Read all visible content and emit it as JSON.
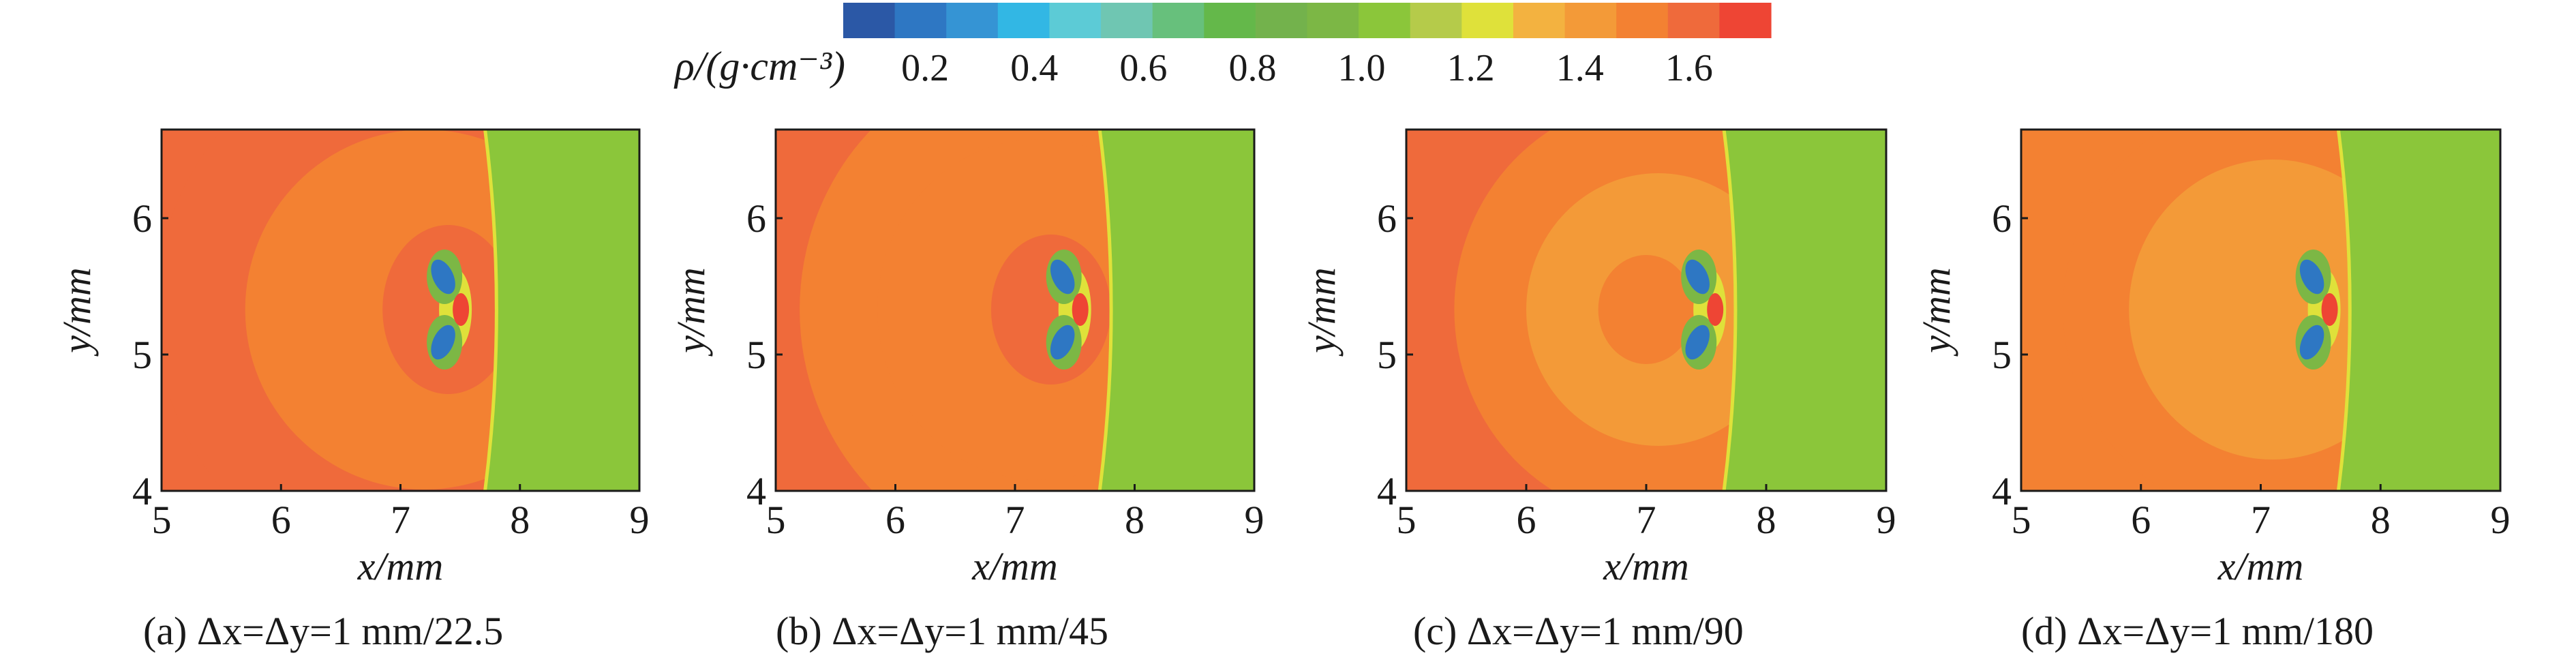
{
  "chart_data": {
    "type": "heatmap",
    "colorbar": {
      "label": "ρ/(g·cm⁻³)",
      "range": [
        0.05,
        1.75
      ],
      "ticks": [
        0.2,
        0.4,
        0.6,
        0.8,
        1.0,
        1.2,
        1.4,
        1.6
      ],
      "tick_labels": [
        "0.2",
        "0.4",
        "0.6",
        "0.8",
        "1.0",
        "1.2",
        "1.4",
        "1.6"
      ],
      "colors": [
        "#2b58a6",
        "#2e77c3",
        "#3594d4",
        "#32b7e4",
        "#5ccbd6",
        "#6fc6b2",
        "#67c07c",
        "#64b84a",
        "#73b24c",
        "#7cb745",
        "#8bc63a",
        "#b5cb4a",
        "#dfe13a",
        "#f3b240",
        "#f39a38",
        "#f38132",
        "#ef6a3b",
        "#ee4534"
      ]
    },
    "panels": [
      {
        "id": "a",
        "caption": "(a) Δx=Δy=1 mm/22.5",
        "xlabel": "x/mm",
        "ylabel": "y/mm",
        "xlim": [
          5,
          9
        ],
        "ylim": [
          4,
          6.65
        ],
        "xticks": [
          "5",
          "6",
          "7",
          "8",
          "9"
        ],
        "yticks": [
          "4",
          "5",
          "6"
        ],
        "shock_x": 7.78,
        "background_left": 1.64,
        "background_right": 1.08,
        "contours": [
          {
            "cx": 7.2,
            "cy": 5.33,
            "rx": 2.25,
            "ry": 2.0,
            "density": 1.58
          },
          {
            "cx": 7.2,
            "cy": 5.33,
            "rx": 1.5,
            "ry": 1.32,
            "density": 1.48
          },
          {
            "cx": 7.4,
            "cy": 5.33,
            "rx": 0.55,
            "ry": 0.62,
            "density": 1.58
          }
        ],
        "jet": {
          "x": 7.38,
          "y": 5.33,
          "density": 0.2
        }
      },
      {
        "id": "b",
        "caption": "(b) Δx=Δy=1 mm/45",
        "xlabel": "x/mm",
        "ylabel": "y/mm",
        "xlim": [
          5,
          9
        ],
        "ylim": [
          4,
          6.65
        ],
        "xticks": [
          "5",
          "6",
          "7",
          "8",
          "9"
        ],
        "yticks": [
          "4",
          "5",
          "6"
        ],
        "shock_x": 7.78,
        "background_left": 1.6,
        "background_right": 1.08,
        "contours": [
          {
            "cx": 7.2,
            "cy": 5.33,
            "rx": 2.0,
            "ry": 1.85,
            "density": 1.55
          },
          {
            "cx": 7.2,
            "cy": 5.33,
            "rx": 1.35,
            "ry": 1.25,
            "density": 1.47
          },
          {
            "cx": 7.3,
            "cy": 5.33,
            "rx": 0.5,
            "ry": 0.55,
            "density": 1.57
          }
        ],
        "jet": {
          "x": 7.42,
          "y": 5.33,
          "density": 0.2
        }
      },
      {
        "id": "c",
        "caption": "(c) Δx=Δy=1 mm/90",
        "xlabel": "x/mm",
        "ylabel": "y/mm",
        "xlim": [
          5,
          9
        ],
        "ylim": [
          4,
          6.65
        ],
        "xticks": [
          "5",
          "6",
          "7",
          "8",
          "9"
        ],
        "yticks": [
          "4",
          "5",
          "6"
        ],
        "shock_x": 7.72,
        "background_left": 1.57,
        "background_right": 1.08,
        "contours": [
          {
            "cx": 7.1,
            "cy": 5.33,
            "rx": 1.7,
            "ry": 1.55,
            "density": 1.5
          },
          {
            "cx": 7.1,
            "cy": 5.33,
            "rx": 1.1,
            "ry": 1.0,
            "density": 1.45
          },
          {
            "cx": 7.0,
            "cy": 5.33,
            "rx": 0.4,
            "ry": 0.4,
            "density": 1.5
          }
        ],
        "jet": {
          "x": 7.45,
          "y": 5.33,
          "density": 0.2
        }
      },
      {
        "id": "d",
        "caption": "(d) Δx=Δy=1 mm/180",
        "xlabel": "x/mm",
        "ylabel": "y/mm",
        "xlim": [
          5,
          9
        ],
        "ylim": [
          4,
          6.65
        ],
        "xticks": [
          "5",
          "6",
          "7",
          "8",
          "9"
        ],
        "yticks": [
          "4",
          "5",
          "6"
        ],
        "shock_x": 7.72,
        "background_left": 1.55,
        "background_right": 1.08,
        "strip": {
          "x0": 5.0,
          "x1": 5.45,
          "density": 1.5
        },
        "contours": [
          {
            "cx": 7.1,
            "cy": 5.33,
            "rx": 1.75,
            "ry": 1.55,
            "density": 1.48
          },
          {
            "cx": 7.1,
            "cy": 5.33,
            "rx": 1.2,
            "ry": 1.1,
            "density": 1.4
          },
          {
            "cx": 7.0,
            "cy": 5.33,
            "rx": 0.55,
            "ry": 0.55,
            "density": 1.45
          }
        ],
        "jet": {
          "x": 7.45,
          "y": 5.33,
          "density": 0.2
        }
      }
    ]
  }
}
